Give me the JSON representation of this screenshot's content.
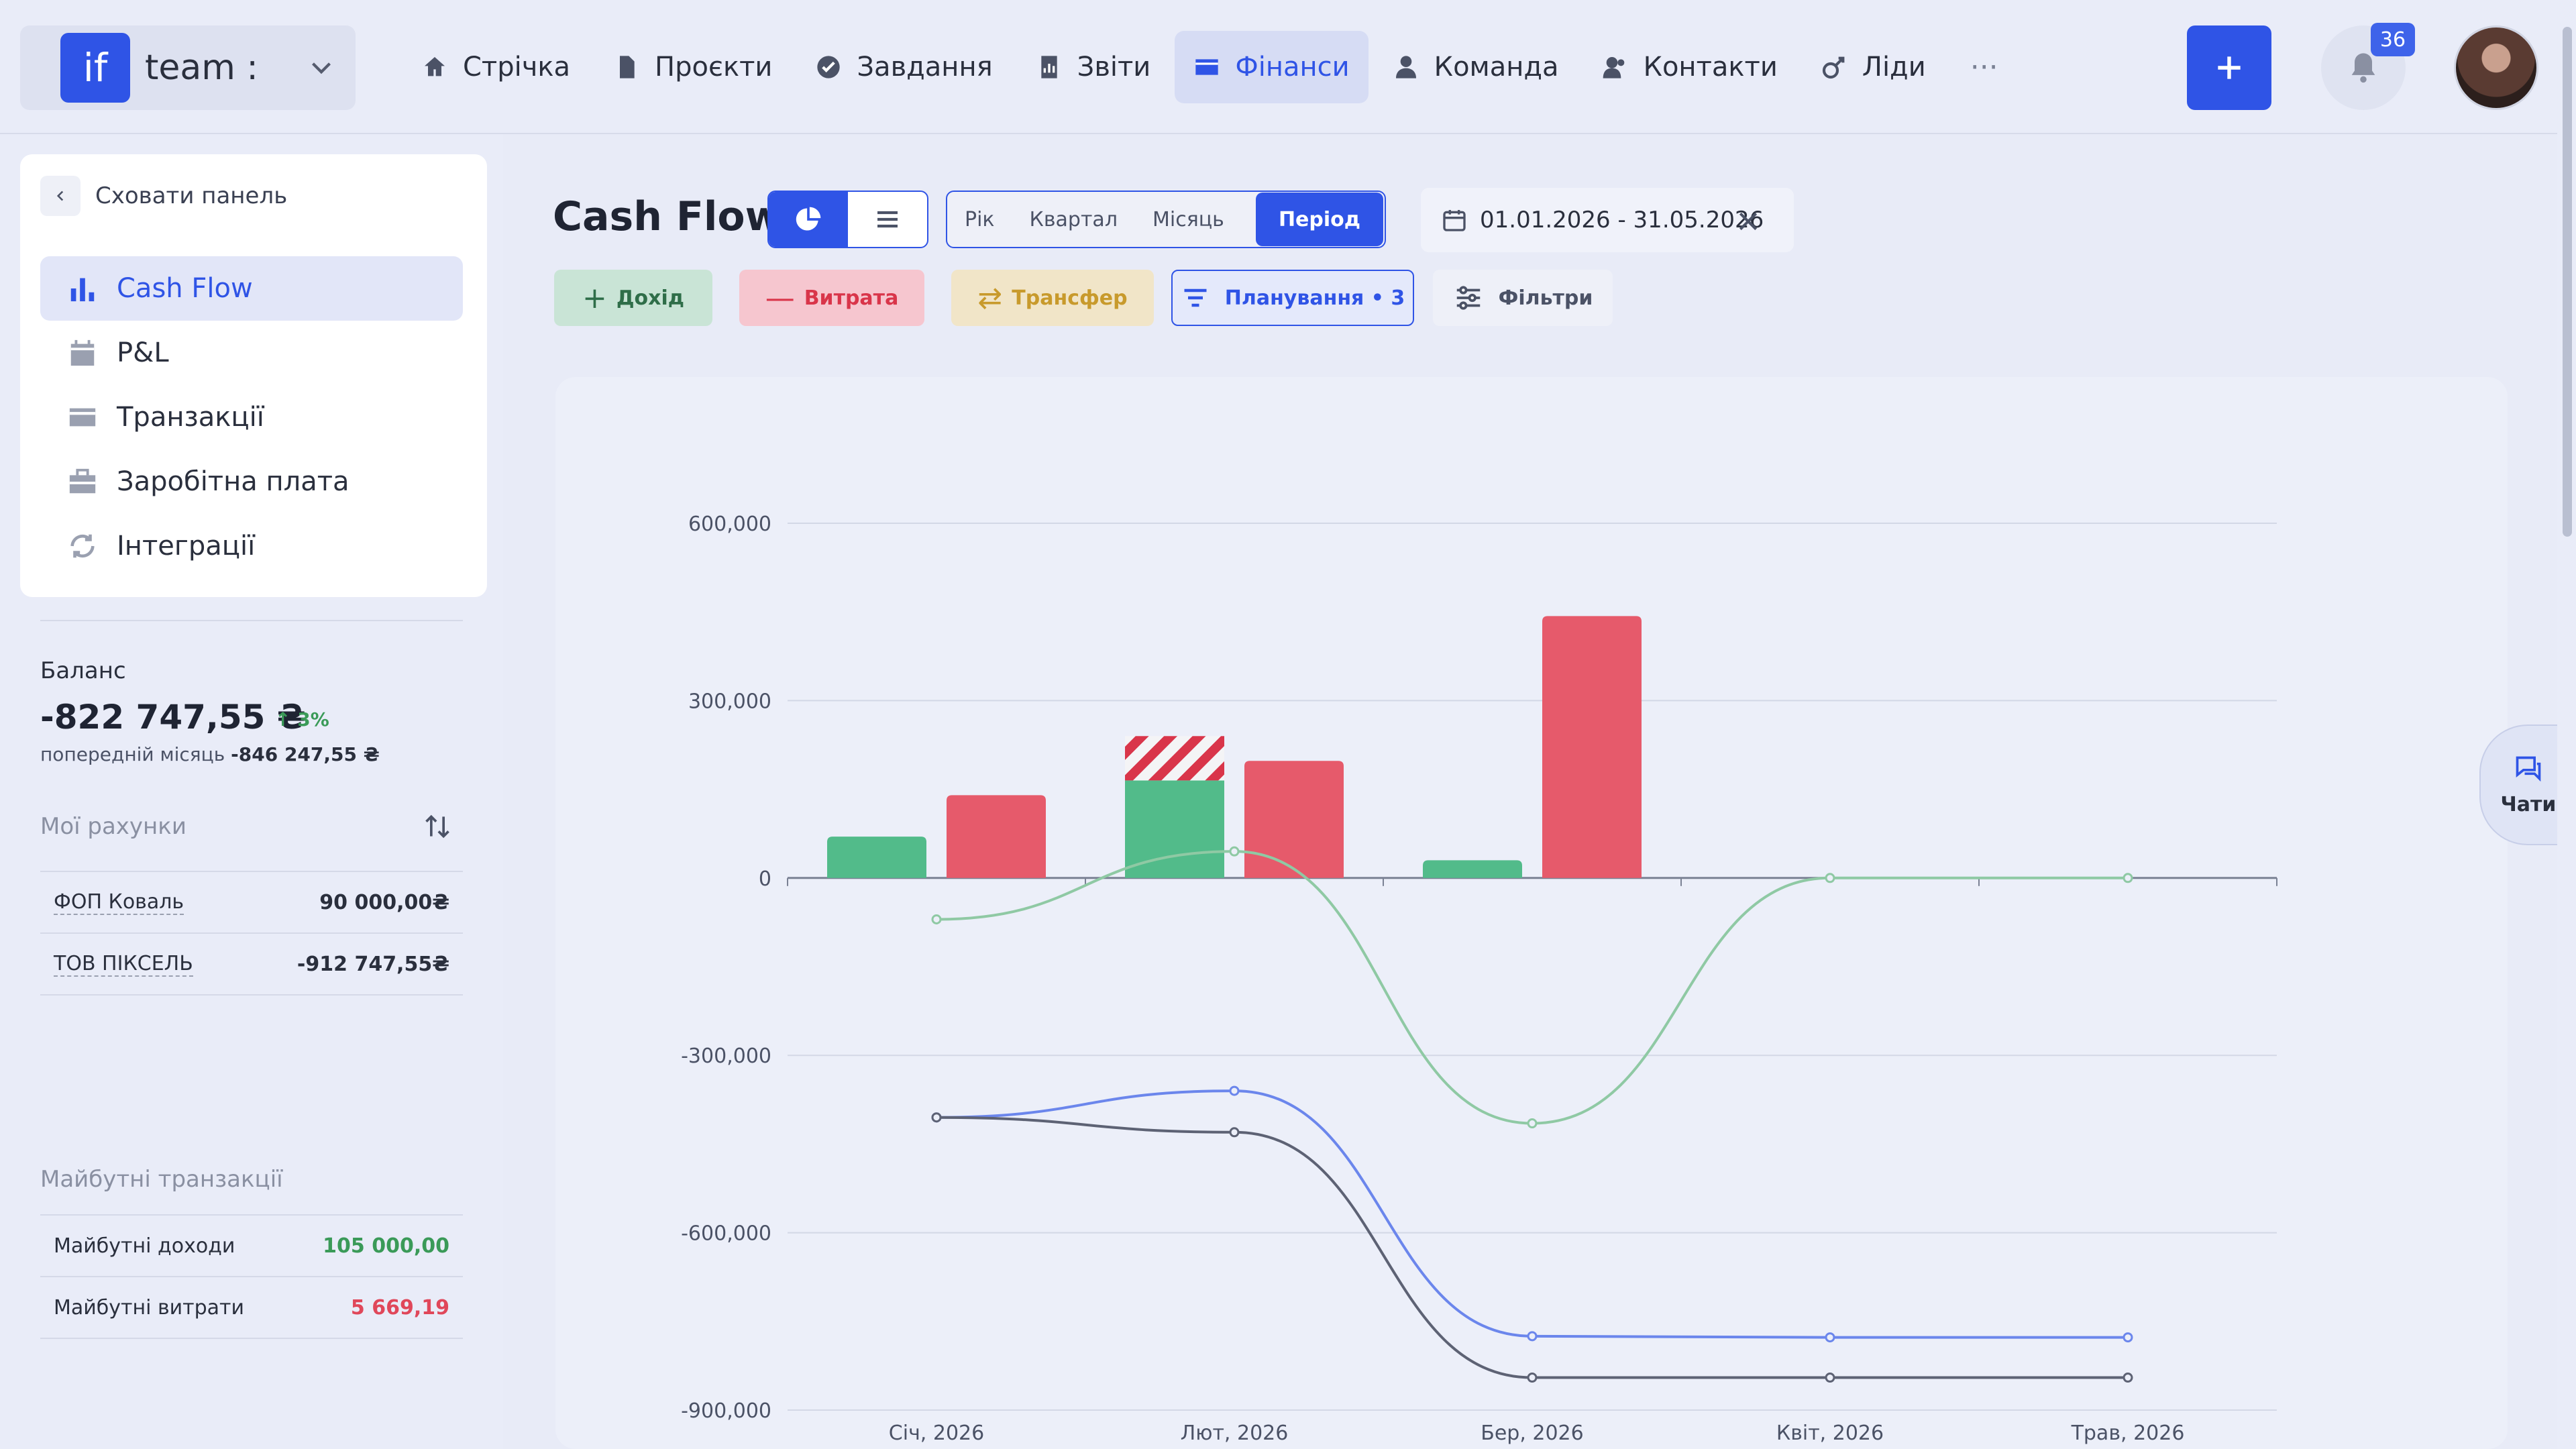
{
  "brand": {
    "logo_text": "if",
    "name": "team :"
  },
  "nav": [
    {
      "label": "Стрічка",
      "icon": "home-icon"
    },
    {
      "label": "Проєкти",
      "icon": "file-icon"
    },
    {
      "label": "Завдання",
      "icon": "check-circle-icon"
    },
    {
      "label": "Звіти",
      "icon": "report-icon"
    },
    {
      "label": "Фінанси",
      "icon": "wallet-icon",
      "active": true
    },
    {
      "label": "Команда",
      "icon": "person-icon"
    },
    {
      "label": "Контакти",
      "icon": "contacts-icon"
    },
    {
      "label": "Ліди",
      "icon": "leads-icon"
    }
  ],
  "nav_more": "···",
  "notifications_count": "36",
  "sidebar": {
    "hide_panel": "Сховати панель",
    "items": [
      {
        "label": "Cash Flow",
        "icon": "bar-chart-icon",
        "active": true
      },
      {
        "label": "P&L",
        "icon": "calendar-dollar-icon"
      },
      {
        "label": "Транзакції",
        "icon": "card-icon"
      },
      {
        "label": "Заробітна плата",
        "icon": "briefcase-icon"
      },
      {
        "label": "Інтеграції",
        "icon": "sync-icon"
      }
    ],
    "balance_title": "Баланс",
    "balance_value": "-822 747,55 ₴",
    "balance_change": "↑ 3%",
    "prev_month_label": "попередній місяць",
    "prev_month_value": "-846 247,55 ₴",
    "accounts_title": "Мої рахунки",
    "accounts": [
      {
        "name": "ФОП Коваль",
        "value": "90 000,00₴"
      },
      {
        "name": "ТОВ ПІКСЕЛЬ",
        "value": "-912 747,55₴"
      }
    ],
    "future_title": "Майбутні транзакції",
    "future": [
      {
        "name": "Майбутні доходи",
        "value": "105 000,00",
        "color": "#3a9a58"
      },
      {
        "name": "Майбутні витрати",
        "value": "5 669,19",
        "color": "#e0475a"
      }
    ]
  },
  "main": {
    "title": "Cash Flow",
    "period_tabs": [
      "Рік",
      "Квартал",
      "Місяць",
      "Період"
    ],
    "active_period": "Період",
    "date_range": "01.01.2026 - 31.05.2026",
    "actions": {
      "income": "Дохід",
      "expense": "Витрата",
      "transfer": "Трансфер",
      "planning": "Планування • 3",
      "filters": "Фільтри"
    }
  },
  "chats_label": "Чати",
  "chart_data": {
    "type": "bar",
    "categories": [
      "Січ, 2026",
      "Лют, 2026",
      "Бер, 2026",
      "Квіт, 2026",
      "Трав, 2026"
    ],
    "ylim": [
      -900000,
      600000
    ],
    "yticks": [
      600000,
      300000,
      0,
      -300000,
      -600000,
      -900000
    ],
    "ytick_labels": [
      "600,000",
      "300,000",
      "0",
      "-300,000",
      "-600,000",
      "-900,000"
    ],
    "bars": [
      {
        "name": "income",
        "color": "#52bb8a",
        "values": [
          70000,
          165000,
          30000,
          0,
          0
        ]
      },
      {
        "name": "income_planned",
        "color": "#d9354a",
        "values": [
          0,
          75000,
          0,
          0,
          0
        ]
      },
      {
        "name": "expense",
        "color": "#e65a6b",
        "values": [
          140000,
          198000,
          443000,
          0,
          0
        ]
      }
    ],
    "lines": [
      {
        "name": "net_flow",
        "color": "#8fc9a4",
        "values": [
          -70000,
          45000,
          -415000,
          0,
          0
        ]
      },
      {
        "name": "balance_planned",
        "color": "#6b86ec",
        "values": [
          -405000,
          -360000,
          -775000,
          -777000,
          -777000
        ]
      },
      {
        "name": "balance",
        "color": "#5d6274",
        "values": [
          -405000,
          -430000,
          -845000,
          -845000,
          -845000
        ]
      }
    ]
  }
}
